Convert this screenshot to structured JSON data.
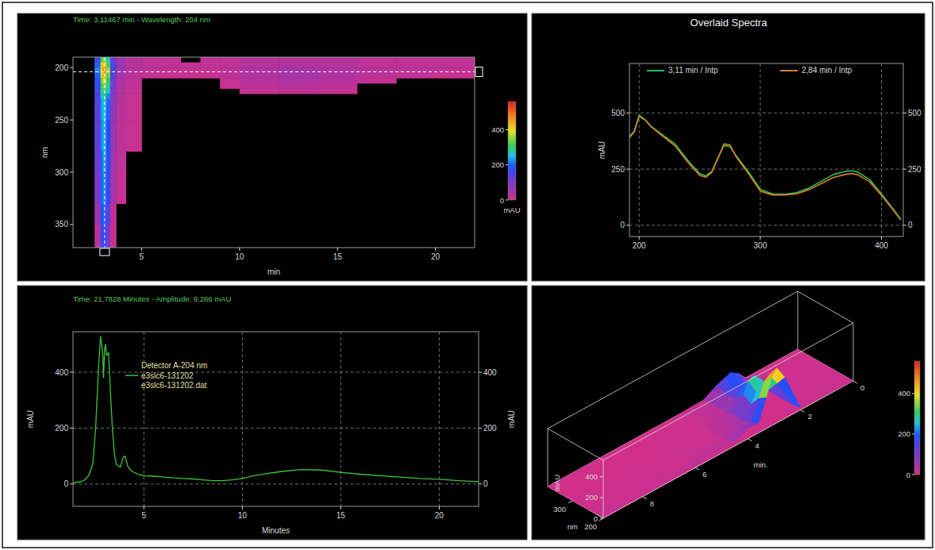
{
  "chart_data": [
    {
      "type": "heatmap",
      "title": "Time: 3,11467 min - Wavelength: 204 nm",
      "x_label": "min",
      "y_label": "nm",
      "xlim": [
        1.5,
        22
      ],
      "ylim": [
        372,
        190
      ],
      "xticks": [
        5,
        10,
        15,
        20
      ],
      "yticks": [
        200,
        250,
        300,
        350
      ],
      "x_bins": [
        2.6,
        2.9,
        3.0,
        3.2,
        3.4,
        3.7,
        4.2,
        5,
        6,
        7,
        8,
        9,
        10,
        12,
        14,
        16,
        18,
        20,
        22
      ],
      "y_bins": [
        190,
        195,
        200,
        205,
        210,
        215,
        220,
        225,
        230,
        250,
        280,
        300,
        330,
        350,
        372
      ],
      "cells": [
        [
          150,
          300,
          350,
          260,
          120,
          60,
          30,
          20,
          20,
          null,
          20,
          20,
          30,
          30,
          30,
          20,
          20,
          20
        ],
        [
          200,
          380,
          420,
          320,
          150,
          60,
          30,
          20,
          20,
          15,
          15,
          20,
          30,
          40,
          30,
          20,
          20,
          20
        ],
        [
          220,
          420,
          460,
          360,
          150,
          60,
          30,
          20,
          20,
          15,
          15,
          25,
          40,
          50,
          40,
          30,
          25,
          20
        ],
        [
          200,
          380,
          430,
          330,
          140,
          50,
          25,
          15,
          10,
          10,
          10,
          20,
          40,
          50,
          40,
          25,
          15,
          10
        ],
        [
          180,
          330,
          380,
          300,
          120,
          40,
          20,
          null,
          null,
          null,
          null,
          15,
          30,
          40,
          30,
          15,
          null,
          null
        ],
        [
          170,
          300,
          340,
          280,
          110,
          40,
          20,
          null,
          null,
          null,
          null,
          10,
          25,
          30,
          20,
          null,
          null,
          null
        ],
        [
          160,
          280,
          320,
          260,
          100,
          35,
          15,
          null,
          null,
          null,
          null,
          null,
          15,
          20,
          15,
          null,
          null,
          null
        ],
        [
          150,
          250,
          280,
          220,
          90,
          30,
          15,
          null,
          null,
          null,
          null,
          null,
          null,
          null,
          null,
          null,
          null,
          null
        ],
        [
          140,
          230,
          250,
          200,
          80,
          30,
          10,
          null,
          null,
          null,
          null,
          null,
          null,
          null,
          null,
          null,
          null,
          null
        ],
        [
          130,
          220,
          240,
          190,
          70,
          25,
          10,
          null,
          null,
          null,
          null,
          null,
          null,
          null,
          null,
          null,
          null,
          null
        ],
        [
          120,
          200,
          230,
          180,
          60,
          20,
          null,
          null,
          null,
          null,
          null,
          null,
          null,
          null,
          null,
          null,
          null,
          null
        ],
        [
          100,
          200,
          220,
          170,
          50,
          15,
          null,
          null,
          null,
          null,
          null,
          null,
          null,
          null,
          null,
          null,
          null,
          null
        ],
        [
          60,
          180,
          200,
          140,
          20,
          null,
          null,
          null,
          null,
          null,
          null,
          null,
          null,
          null,
          null,
          null,
          null,
          null
        ],
        [
          30,
          150,
          180,
          100,
          10,
          null,
          null,
          null,
          null,
          null,
          null,
          null,
          null,
          null,
          null,
          null,
          null,
          null
        ]
      ],
      "cursor": {
        "x": 3.11467,
        "y": 204
      },
      "colorbar": {
        "range": [
          0,
          560
        ],
        "ticks": [
          0,
          200,
          400
        ],
        "label": "mAU"
      }
    },
    {
      "type": "line",
      "title": "Overlaid Spectra",
      "y_label": "mAU",
      "x": [
        192,
        196,
        200,
        205,
        210,
        220,
        230,
        240,
        250,
        255,
        260,
        265,
        270,
        275,
        280,
        290,
        300,
        310,
        320,
        330,
        340,
        350,
        360,
        370,
        375,
        380,
        390,
        400,
        410,
        416
      ],
      "series": [
        {
          "name": "3,11 min / Intp",
          "color": "#2fbf4f",
          "values": [
            395,
            420,
            490,
            470,
            440,
            400,
            360,
            290,
            230,
            220,
            240,
            300,
            355,
            350,
            310,
            240,
            160,
            140,
            138,
            145,
            165,
            195,
            225,
            240,
            242,
            238,
            205,
            140,
            70,
            25
          ]
        },
        {
          "name": "2,84 min / Intp",
          "color": "#d9822b",
          "values": [
            390,
            415,
            485,
            468,
            438,
            395,
            352,
            282,
            222,
            214,
            236,
            296,
            362,
            358,
            305,
            232,
            152,
            135,
            135,
            140,
            158,
            185,
            212,
            226,
            230,
            226,
            195,
            134,
            66,
            24
          ]
        }
      ],
      "xlim": [
        192,
        418
      ],
      "ylim": [
        -50,
        720
      ],
      "xticks": [
        200,
        300,
        400
      ],
      "yticks": [
        0,
        250,
        500
      ],
      "grid": true,
      "legend": "top"
    },
    {
      "type": "line",
      "title": "Time: 21,7828 Minutes - Amplitude: 9,266 mAU",
      "x_label": "Minutes",
      "y_label": "mAU",
      "legend_title": "Detector A-204 nm",
      "legend_note": "e3slc6-131202.dat",
      "x": [
        1.4,
        1.8,
        2.0,
        2.2,
        2.4,
        2.55,
        2.7,
        2.8,
        2.9,
        2.95,
        3.0,
        3.05,
        3.1,
        3.2,
        3.3,
        3.4,
        3.5,
        3.6,
        3.8,
        3.95,
        4.05,
        4.2,
        4.4,
        4.7,
        5.0,
        5.5,
        6.0,
        6.5,
        7.0,
        7.5,
        8.0,
        8.5,
        9.0,
        9.5,
        10.0,
        10.5,
        11.0,
        12.0,
        13.0,
        14.0,
        15.0,
        16.0,
        17.0,
        18.0,
        19.0,
        20.0,
        21.0,
        21.78,
        22.0
      ],
      "series": [
        {
          "name": "e3slc6-131202",
          "color": "#3cc43c",
          "values": [
            5,
            8,
            15,
            30,
            70,
            200,
            420,
            530,
            470,
            380,
            480,
            500,
            460,
            470,
            330,
            200,
            110,
            70,
            60,
            95,
            100,
            60,
            45,
            35,
            30,
            28,
            25,
            22,
            20,
            18,
            15,
            12,
            12,
            15,
            20,
            28,
            35,
            45,
            52,
            50,
            42,
            35,
            30,
            25,
            20,
            17,
            12,
            9.266,
            8
          ]
        }
      ],
      "xlim": [
        1.4,
        22
      ],
      "ylim": [
        -80,
        545
      ],
      "xticks": [
        5,
        10,
        15,
        20
      ],
      "yticks": [
        0,
        200,
        400
      ],
      "grid": true,
      "legend": "top-left"
    },
    {
      "type": "surface3d",
      "x_label": "min.",
      "y_label": "nm",
      "z_label": "mAU",
      "x": [
        0,
        2,
        2.6,
        2.9,
        3.1,
        3.3,
        3.6,
        4.0,
        4.5,
        6,
        9.5
      ],
      "y": [
        200,
        225,
        250,
        275,
        300,
        325,
        350,
        380
      ],
      "z": [
        [
          0,
          20,
          400,
          530,
          470,
          300,
          90,
          100,
          30,
          20,
          10
        ],
        [
          0,
          10,
          300,
          420,
          380,
          250,
          60,
          70,
          20,
          10,
          5
        ],
        [
          0,
          5,
          200,
          260,
          240,
          150,
          30,
          40,
          10,
          5,
          0
        ],
        [
          0,
          5,
          250,
          330,
          300,
          200,
          40,
          50,
          10,
          5,
          0
        ],
        [
          0,
          5,
          150,
          200,
          180,
          120,
          20,
          30,
          5,
          0,
          0
        ],
        [
          0,
          5,
          120,
          160,
          150,
          100,
          15,
          20,
          5,
          0,
          0
        ],
        [
          0,
          5,
          180,
          230,
          210,
          140,
          20,
          30,
          5,
          0,
          0
        ],
        [
          0,
          0,
          60,
          90,
          80,
          50,
          10,
          10,
          0,
          0,
          0
        ]
      ],
      "xlim": [
        0,
        9.5
      ],
      "ylim": [
        200,
        380
      ],
      "zlim": [
        0,
        560
      ],
      "xticks": [
        0,
        2,
        4,
        6,
        8
      ],
      "yticks": [
        200,
        300
      ],
      "zticks": [
        0,
        200,
        400
      ],
      "colorbar": {
        "range": [
          0,
          560
        ],
        "ticks": [
          0,
          200,
          400
        ]
      }
    }
  ]
}
